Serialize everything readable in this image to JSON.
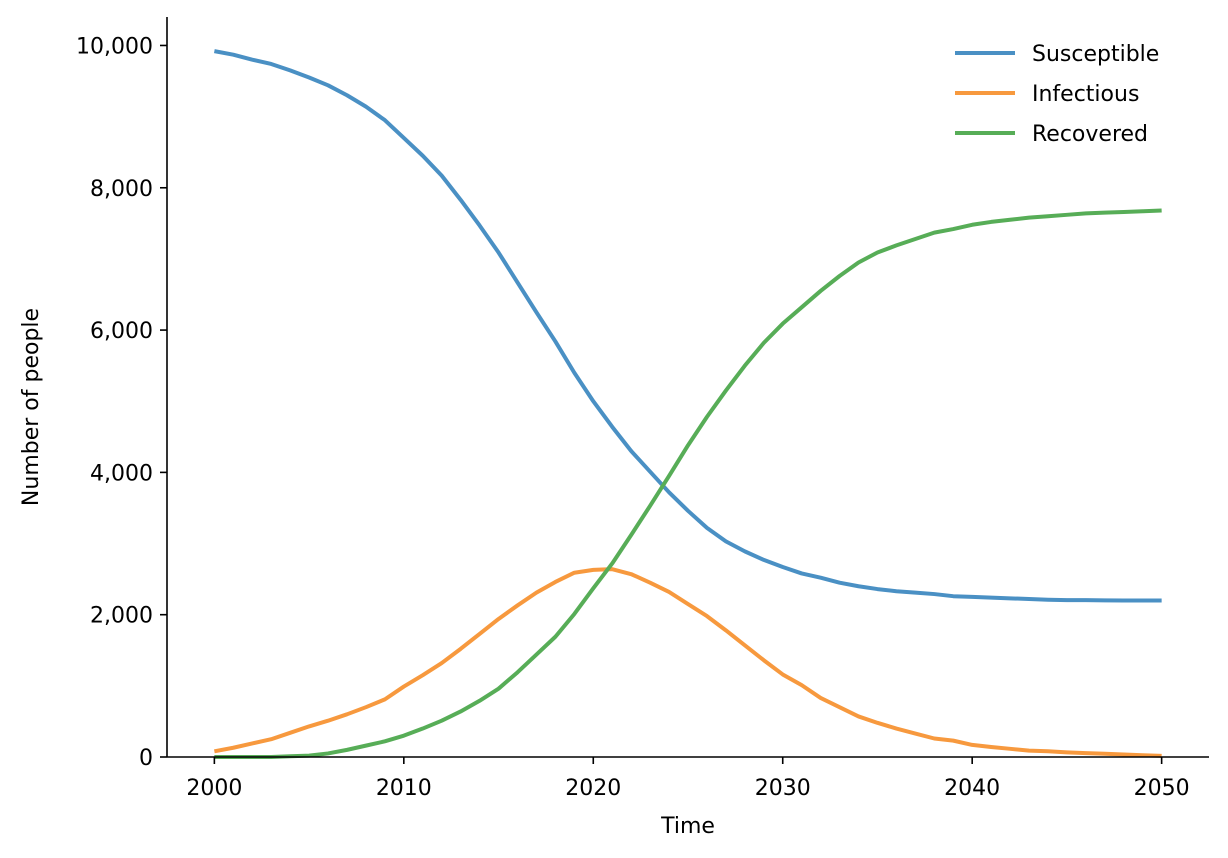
{
  "chart_data": {
    "type": "line",
    "title": "",
    "xlabel": "Time",
    "ylabel": "Number of people",
    "xlim": [
      1997.5,
      2052.5
    ],
    "ylim": [
      0,
      10400
    ],
    "xticks": [
      2000,
      2010,
      2020,
      2030,
      2040,
      2050
    ],
    "xtick_labels": [
      "2000",
      "2010",
      "2020",
      "2030",
      "2040",
      "2050"
    ],
    "yticks": [
      0,
      2000,
      4000,
      6000,
      8000,
      10000
    ],
    "ytick_labels": [
      "0",
      "2,000",
      "4,000",
      "6,000",
      "8,000",
      "10,000"
    ],
    "grid": false,
    "legend_position": "top-right",
    "x": [
      2000,
      2001,
      2002,
      2003,
      2004,
      2005,
      2006,
      2007,
      2008,
      2009,
      2010,
      2011,
      2012,
      2013,
      2014,
      2015,
      2016,
      2017,
      2018,
      2019,
      2020,
      2021,
      2022,
      2023,
      2024,
      2025,
      2026,
      2027,
      2028,
      2029,
      2030,
      2031,
      2032,
      2033,
      2034,
      2035,
      2036,
      2037,
      2038,
      2039,
      2040,
      2041,
      2042,
      2043,
      2044,
      2045,
      2046,
      2047,
      2048,
      2049,
      2050
    ],
    "series": [
      {
        "name": "Susceptible",
        "color": "#4a90c4",
        "values": [
          9920,
          9870,
          9800,
          9740,
          9650,
          9550,
          9440,
          9300,
          9140,
          8950,
          8700,
          8450,
          8170,
          7830,
          7470,
          7090,
          6670,
          6250,
          5840,
          5400,
          5000,
          4640,
          4300,
          4010,
          3720,
          3460,
          3220,
          3030,
          2890,
          2770,
          2670,
          2580,
          2520,
          2450,
          2400,
          2360,
          2330,
          2310,
          2290,
          2260,
          2250,
          2240,
          2230,
          2220,
          2210,
          2205,
          2205,
          2202,
          2200,
          2200,
          2200
        ]
      },
      {
        "name": "Infectious",
        "color": "#f7993e",
        "values": [
          80,
          130,
          190,
          250,
          340,
          430,
          510,
          600,
          700,
          810,
          990,
          1150,
          1320,
          1520,
          1730,
          1940,
          2130,
          2310,
          2460,
          2590,
          2630,
          2640,
          2570,
          2450,
          2320,
          2150,
          1980,
          1780,
          1570,
          1360,
          1160,
          1010,
          830,
          700,
          570,
          480,
          400,
          330,
          260,
          230,
          170,
          140,
          115,
          90,
          80,
          65,
          55,
          45,
          35,
          25,
          15
        ]
      },
      {
        "name": "Recovered",
        "color": "#57ad57",
        "values": [
          0,
          0,
          0,
          0,
          10,
          20,
          50,
          100,
          160,
          220,
          300,
          400,
          510,
          640,
          790,
          960,
          1190,
          1440,
          1690,
          2010,
          2370,
          2720,
          3120,
          3530,
          3950,
          4380,
          4780,
          5150,
          5500,
          5820,
          6090,
          6320,
          6550,
          6760,
          6950,
          7090,
          7190,
          7280,
          7370,
          7420,
          7480,
          7520,
          7550,
          7580,
          7600,
          7620,
          7640,
          7650,
          7660,
          7670,
          7680
        ]
      }
    ]
  }
}
